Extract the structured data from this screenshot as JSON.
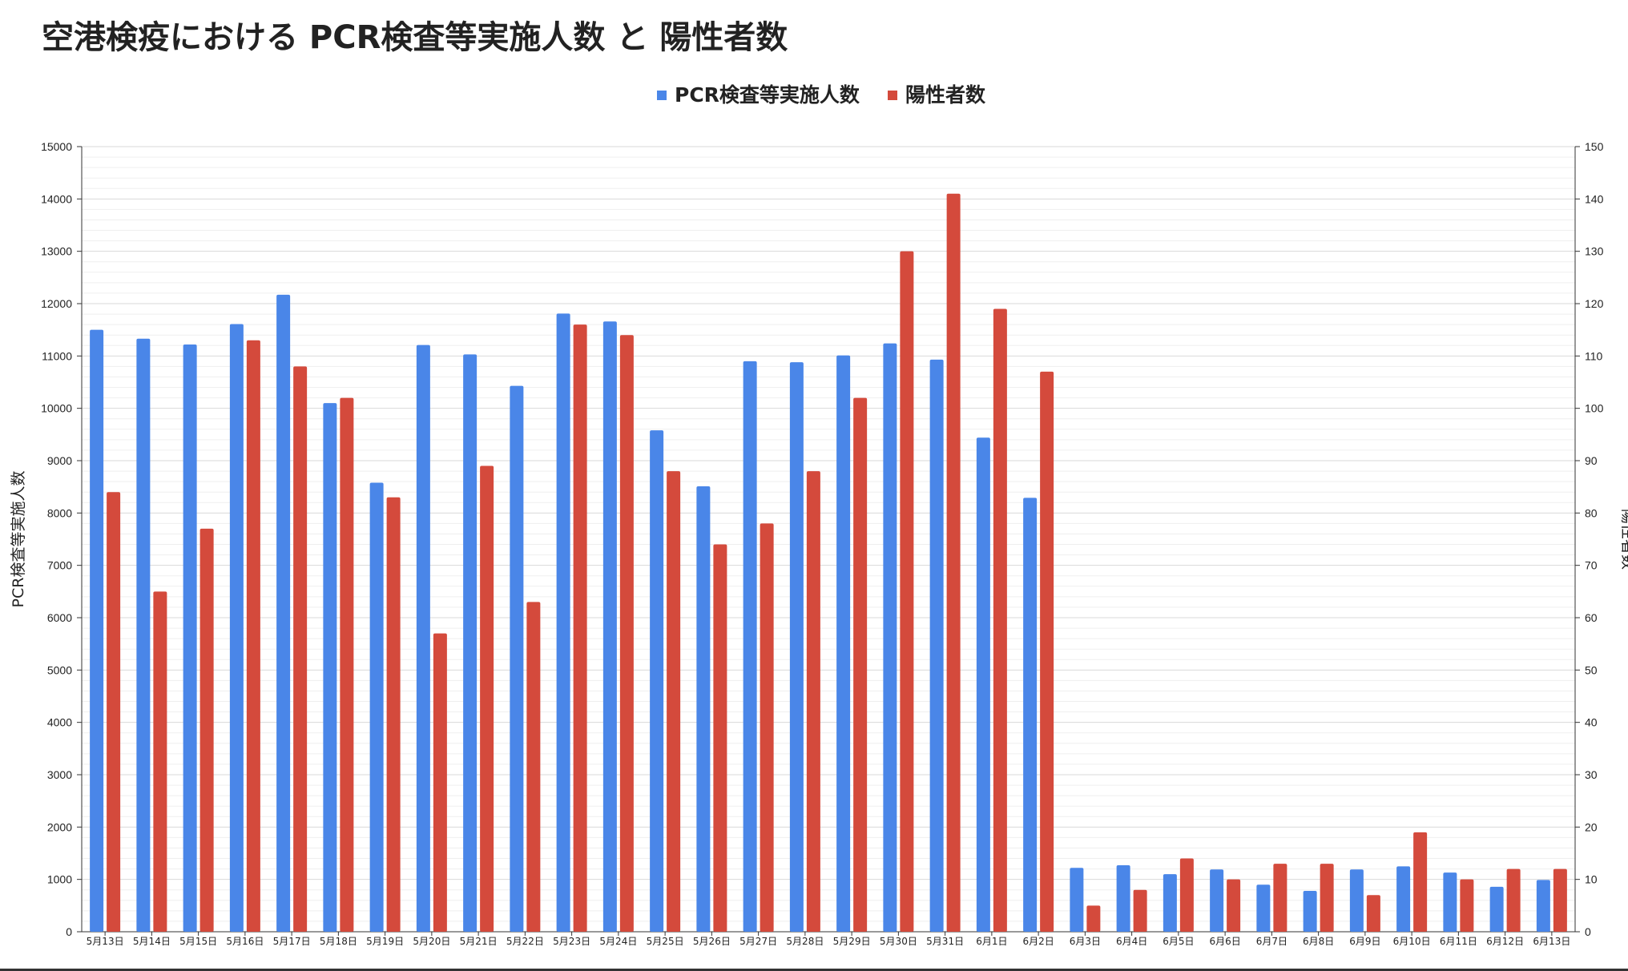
{
  "page": {
    "title": "空港検疫における PCR検査等実施人数 と 陽性者数"
  },
  "chart_data": {
    "type": "bar",
    "title": "空港検疫における PCR検査等実施人数 と 陽性者数",
    "categories": [
      "5月13日",
      "5月14日",
      "5月15日",
      "5月16日",
      "5月17日",
      "5月18日",
      "5月19日",
      "5月20日",
      "5月21日",
      "5月22日",
      "5月23日",
      "5月24日",
      "5月25日",
      "5月26日",
      "5月27日",
      "5月28日",
      "5月29日",
      "5月30日",
      "5月31日",
      "6月1日",
      "6月2日",
      "6月3日",
      "6月4日",
      "6月5日",
      "6月6日",
      "6月7日",
      "6月8日",
      "6月9日",
      "6月10日",
      "6月11日",
      "6月12日",
      "6月13日"
    ],
    "series": [
      {
        "name": "PCR検査等実施人数",
        "axis": "left",
        "color": "#4A86E8",
        "values": [
          11500,
          11330,
          11220,
          11610,
          12170,
          10100,
          8580,
          11210,
          11030,
          10430,
          11810,
          11660,
          9580,
          8510,
          10900,
          10880,
          11010,
          11240,
          10930,
          9440,
          8290,
          1220,
          1270,
          1100,
          1190,
          900,
          780,
          1190,
          1250,
          1130,
          860,
          990
        ]
      },
      {
        "name": "陽性者数",
        "axis": "right",
        "color": "#D44A3C",
        "values": [
          84,
          65,
          77,
          113,
          108,
          102,
          83,
          57,
          89,
          63,
          116,
          114,
          88,
          74,
          78,
          88,
          102,
          130,
          141,
          119,
          107,
          5,
          8,
          14,
          10,
          13,
          13,
          7,
          19,
          10,
          12,
          12
        ]
      }
    ],
    "y_left": {
      "label": "PCR検査等実施人数",
      "min": 0,
      "max": 15000,
      "step": 1000,
      "ticks": [
        "0",
        "1000",
        "2000",
        "3000",
        "4000",
        "5000",
        "6000",
        "7000",
        "8000",
        "9000",
        "10000",
        "11000",
        "12000",
        "13000",
        "14000",
        "15000"
      ]
    },
    "y_right": {
      "label": "陽性者数",
      "min": 0,
      "max": 150,
      "step": 10,
      "ticks": [
        "0",
        "10",
        "20",
        "30",
        "40",
        "50",
        "60",
        "70",
        "80",
        "90",
        "100",
        "110",
        "120",
        "130",
        "140",
        "150"
      ]
    },
    "legend": {
      "position": "top-center",
      "items": [
        "PCR検査等実施人数",
        "陽性者数"
      ]
    },
    "grid": true
  }
}
